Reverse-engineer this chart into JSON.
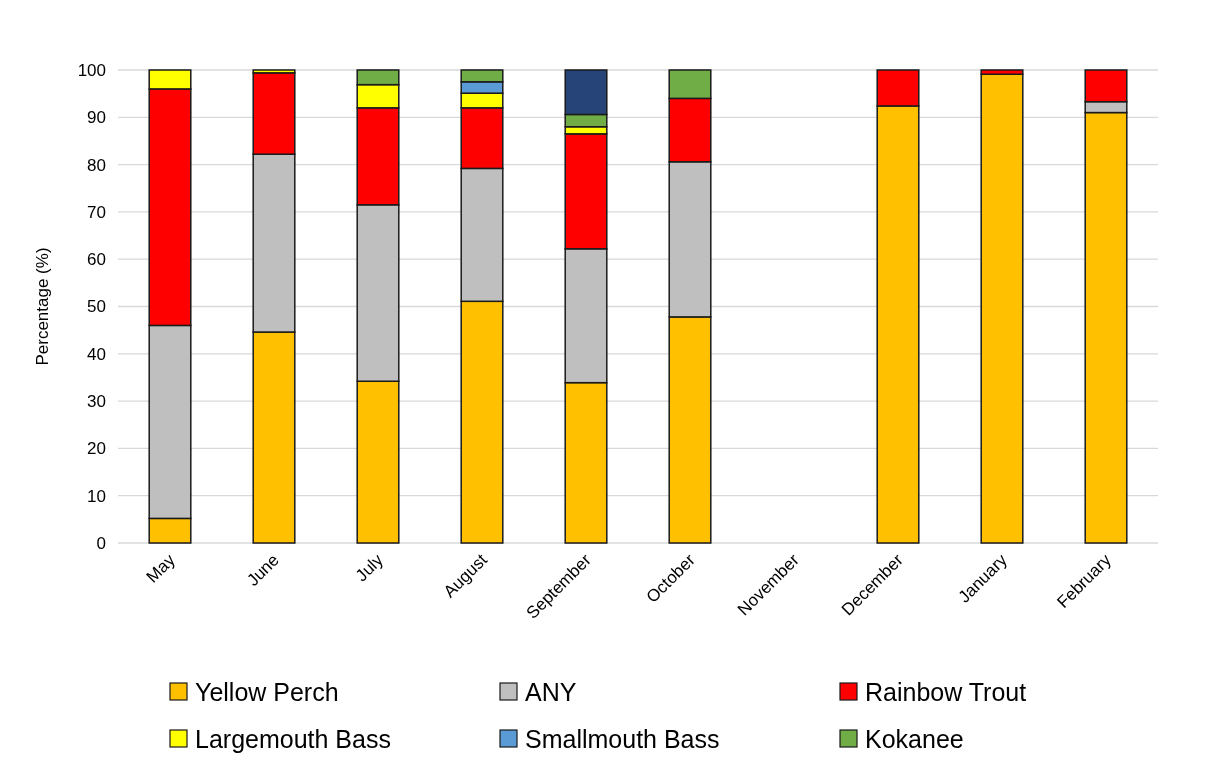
{
  "chart_data": {
    "type": "bar",
    "stacked": true,
    "ylabel": "Percentage (%)",
    "categories": [
      "May",
      "June",
      "July",
      "August",
      "September",
      "October",
      "November",
      "December",
      "January",
      "February"
    ],
    "series": [
      {
        "name": "Yellow Perch",
        "color": "#ffc000",
        "values": [
          5.2,
          44.6,
          34.2,
          51.1,
          33.9,
          47.8,
          null,
          92.4,
          99.1,
          91.0
        ]
      },
      {
        "name": "ANY",
        "color": "#bfbfbf",
        "values": [
          40.8,
          37.6,
          37.3,
          28.1,
          28.3,
          32.8,
          null,
          null,
          null,
          2.3
        ]
      },
      {
        "name": "Rainbow Trout",
        "color": "#ff0000",
        "values": [
          50.0,
          17.2,
          20.5,
          12.8,
          24.3,
          13.4,
          null,
          7.6,
          0.9,
          6.7
        ]
      },
      {
        "name": "Largemouth Bass",
        "color": "#ffff00",
        "values": [
          4.0,
          0.6,
          4.9,
          3.1,
          1.5,
          null,
          null,
          null,
          null,
          null
        ]
      },
      {
        "name": "Smallmouth Bass",
        "color": "#5b9bd5",
        "values": [
          null,
          null,
          null,
          2.4,
          null,
          null,
          null,
          null,
          null,
          null
        ]
      },
      {
        "name": "Kokanee",
        "color": "#70ad47",
        "values": [
          null,
          null,
          3.1,
          2.5,
          2.6,
          6.0,
          null,
          null,
          null,
          null
        ]
      },
      {
        "color": "#264478",
        "values": [
          null,
          null,
          null,
          null,
          9.4,
          null,
          null,
          null,
          null,
          null
        ]
      }
    ],
    "ylim": [
      0,
      100
    ],
    "yticks": [
      0,
      10,
      20,
      30,
      40,
      50,
      60,
      70,
      80,
      90,
      100
    ],
    "grid": "y",
    "legend": "bottom"
  }
}
